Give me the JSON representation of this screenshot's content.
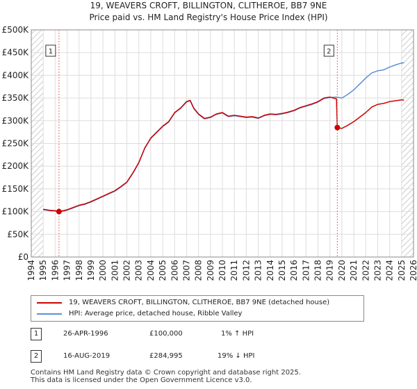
{
  "title_line1": "19, WEAVERS CROFT, BILLINGTON, CLITHEROE, BB7 9NE",
  "title_line2": "Price paid vs. HM Land Registry's House Price Index (HPI)",
  "chart_data": {
    "type": "line",
    "title": "19, WEAVERS CROFT, BILLINGTON, CLITHEROE, BB7 9NE",
    "subtitle": "Price paid vs. HM Land Registry's House Price Index (HPI)",
    "xlim": [
      1994,
      2026
    ],
    "ylim": [
      0,
      500000
    ],
    "y_ticks": [
      0,
      50000,
      100000,
      150000,
      200000,
      250000,
      300000,
      350000,
      400000,
      450000,
      500000
    ],
    "y_tick_labels": [
      "£0",
      "£50K",
      "£100K",
      "£150K",
      "£200K",
      "£250K",
      "£300K",
      "£350K",
      "£400K",
      "£450K",
      "£500K"
    ],
    "x_ticks": [
      1994,
      1995,
      1996,
      1997,
      1998,
      1999,
      2000,
      2001,
      2002,
      2003,
      2004,
      2005,
      2006,
      2007,
      2008,
      2009,
      2010,
      2011,
      2012,
      2013,
      2014,
      2015,
      2016,
      2017,
      2018,
      2019,
      2020,
      2021,
      2022,
      2023,
      2024,
      2025,
      2026
    ],
    "x_tick_labels": [
      "1994",
      "1995",
      "1996",
      "1997",
      "1998",
      "1999",
      "2000",
      "2001",
      "2002",
      "2003",
      "2004",
      "2005",
      "2006",
      "2007",
      "2008",
      "2009",
      "2010",
      "2011",
      "2012",
      "2013",
      "2014",
      "2015",
      "2016",
      "2017",
      "2018",
      "2019",
      "2020",
      "2021",
      "2022",
      "2023",
      "2024",
      "2025",
      "2026"
    ],
    "grid": true,
    "series": [
      {
        "name": "19, WEAVERS CROFT, BILLINGTON, CLITHEROE, BB7 9NE (detached house)",
        "color": "#cc0000",
        "x": [
          1995.0,
          1995.5,
          1996.0,
          1996.32,
          1997.0,
          1997.5,
          1998.0,
          1998.5,
          1999.0,
          1999.5,
          2000.0,
          2000.5,
          2001.0,
          2001.5,
          2002.0,
          2002.5,
          2003.0,
          2003.5,
          2004.0,
          2004.5,
          2005.0,
          2005.5,
          2006.0,
          2006.5,
          2007.0,
          2007.3,
          2007.6,
          2008.0,
          2008.5,
          2009.0,
          2009.5,
          2010.0,
          2010.5,
          2011.0,
          2011.5,
          2012.0,
          2012.5,
          2013.0,
          2013.5,
          2014.0,
          2014.5,
          2015.0,
          2015.5,
          2016.0,
          2016.5,
          2017.0,
          2017.5,
          2018.0,
          2018.5,
          2019.0,
          2019.55,
          2019.62,
          2020.0,
          2020.5,
          2021.0,
          2021.5,
          2022.0,
          2022.5,
          2023.0,
          2023.5,
          2024.0,
          2024.5,
          2025.0,
          2025.2
        ],
        "values": [
          105000,
          103000,
          102000,
          100000,
          104000,
          109000,
          114000,
          117000,
          122000,
          128000,
          134000,
          140000,
          146000,
          155000,
          165000,
          185000,
          208000,
          240000,
          262000,
          275000,
          288000,
          298000,
          318000,
          328000,
          342000,
          345000,
          328000,
          315000,
          305000,
          308000,
          315000,
          318000,
          310000,
          312000,
          310000,
          308000,
          309000,
          306000,
          312000,
          315000,
          314000,
          316000,
          319000,
          323000,
          329000,
          333000,
          337000,
          342000,
          350000,
          352000,
          348000,
          284995,
          283000,
          290000,
          298000,
          308000,
          318000,
          330000,
          336000,
          338000,
          342000,
          344000,
          346000,
          345000
        ]
      },
      {
        "name": "HPI: Average price, detached house, Ribble Valley",
        "color": "#5b8fd6",
        "x": [
          1995.0,
          1995.5,
          1996.0,
          1996.32,
          1997.0,
          1997.5,
          1998.0,
          1998.5,
          1999.0,
          1999.5,
          2000.0,
          2000.5,
          2001.0,
          2001.5,
          2002.0,
          2002.5,
          2003.0,
          2003.5,
          2004.0,
          2004.5,
          2005.0,
          2005.5,
          2006.0,
          2006.5,
          2007.0,
          2007.3,
          2007.6,
          2008.0,
          2008.5,
          2009.0,
          2009.5,
          2010.0,
          2010.5,
          2011.0,
          2011.5,
          2012.0,
          2012.5,
          2013.0,
          2013.5,
          2014.0,
          2014.5,
          2015.0,
          2015.5,
          2016.0,
          2016.5,
          2017.0,
          2017.5,
          2018.0,
          2018.5,
          2019.0,
          2019.55,
          2020.0,
          2020.5,
          2021.0,
          2021.5,
          2022.0,
          2022.5,
          2023.0,
          2023.5,
          2024.0,
          2024.5,
          2025.0,
          2025.2
        ],
        "values": [
          104000,
          102000,
          101000,
          99000,
          103000,
          108000,
          113000,
          116000,
          121000,
          127000,
          133000,
          139000,
          145000,
          154000,
          164000,
          184000,
          207000,
          239000,
          261000,
          274000,
          287000,
          297000,
          317000,
          327000,
          341000,
          344000,
          327000,
          314000,
          304000,
          307000,
          314000,
          317000,
          309000,
          311000,
          309000,
          307000,
          308000,
          305000,
          311000,
          314000,
          313000,
          315000,
          318000,
          322000,
          328000,
          332000,
          336000,
          341000,
          349000,
          351000,
          352000,
          350000,
          358000,
          368000,
          381000,
          394000,
          405000,
          410000,
          412000,
          418000,
          423000,
          427000,
          428000
        ]
      }
    ],
    "markers": [
      {
        "label": "1",
        "x": 1996.32,
        "y": 100000
      },
      {
        "label": "2",
        "x": 2019.62,
        "y": 284995
      }
    ],
    "hatched_ranges": [
      [
        1994,
        1995
      ],
      [
        2025,
        2026
      ]
    ]
  },
  "legend": {
    "items": [
      {
        "label": "19, WEAVERS CROFT, BILLINGTON, CLITHEROE, BB7 9NE (detached house)",
        "color": "#cc0000"
      },
      {
        "label": "HPI: Average price, detached house, Ribble Valley",
        "color": "#5b8fd6"
      }
    ]
  },
  "sales": [
    {
      "num": "1",
      "date": "26-APR-1996",
      "price": "£100,000",
      "hpi": "1% ↑ HPI"
    },
    {
      "num": "2",
      "date": "16-AUG-2019",
      "price": "£284,995",
      "hpi": "19% ↓ HPI"
    }
  ],
  "footer": {
    "line1": "Contains HM Land Registry data © Crown copyright and database right 2025.",
    "line2": "This data is licensed under the Open Government Licence v3.0."
  }
}
